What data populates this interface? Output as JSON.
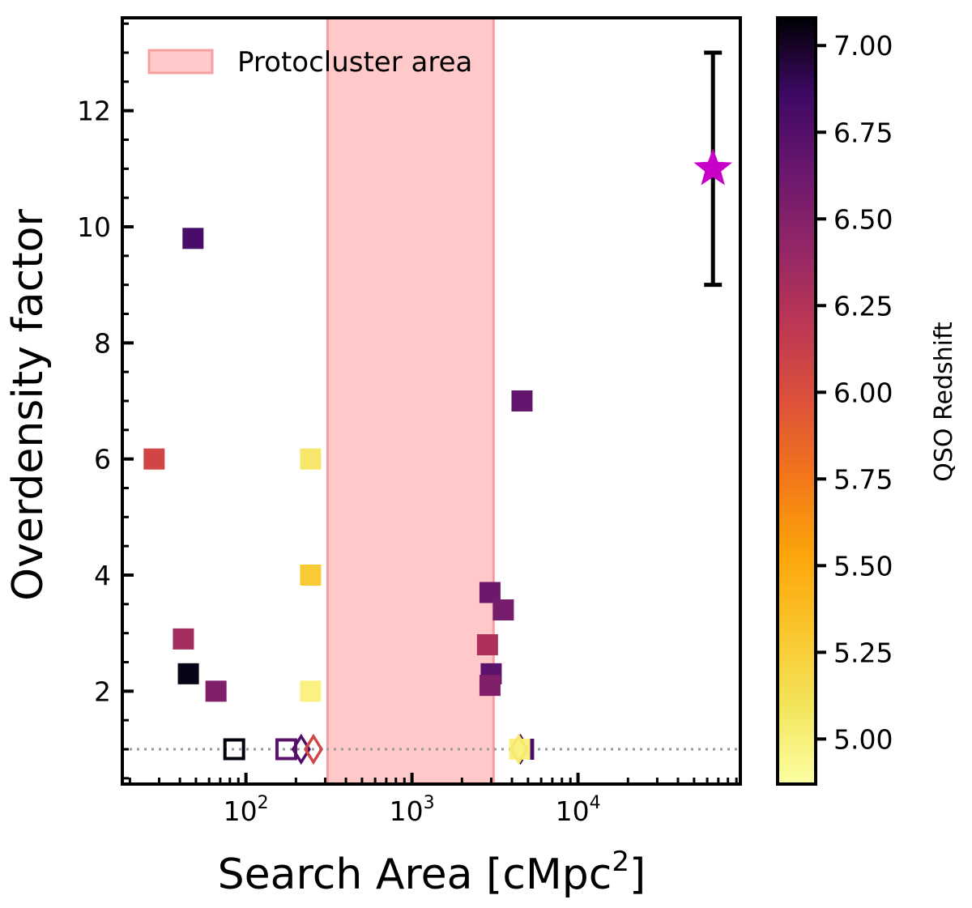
{
  "chart_data": {
    "type": "scatter",
    "xlabel": "Search Area [cMpc$^2$]",
    "xlabel_main": "Search Area [cMpc",
    "xlabel_sup": "2",
    "xlabel_close": "]",
    "ylabel": "Overdensity factor",
    "xscale": "log",
    "xlim": [
      18,
      95000
    ],
    "ylim": [
      0.4,
      13.6
    ],
    "x_ticks": [
      {
        "value": 100,
        "base": "10",
        "exp": "2"
      },
      {
        "value": 1000,
        "base": "10",
        "exp": "3"
      },
      {
        "value": 10000,
        "base": "10",
        "exp": "4"
      }
    ],
    "y_ticks": [
      2,
      4,
      6,
      8,
      10,
      12
    ],
    "y_tick_labels": [
      "2",
      "4",
      "6",
      "8",
      "10",
      "12"
    ],
    "reference_line": {
      "y": 1,
      "style": "dotted",
      "color": "#999999"
    },
    "shaded_region": {
      "label": "Protocluster area",
      "x_range": [
        310,
        3100
      ],
      "color": "#ffc9c9",
      "edge_color": "#f4a0a0"
    },
    "legend": {
      "position": "top-left",
      "entries": [
        {
          "label": "Protocluster area"
        }
      ]
    },
    "colorbar": {
      "label": "QSO Redshift",
      "colormap": "inferno",
      "range": [
        4.87,
        7.08
      ],
      "ticks": [
        5.0,
        5.25,
        5.5,
        5.75,
        6.0,
        6.25,
        6.5,
        6.75,
        7.0
      ],
      "tick_labels": [
        "5.00",
        "5.25",
        "5.50",
        "5.75",
        "6.00",
        "6.25",
        "6.50",
        "6.75",
        "7.00"
      ]
    },
    "points": [
      {
        "x": 48,
        "y": 9.8,
        "z": 6.6,
        "marker": "square",
        "filled": true
      },
      {
        "x": 28,
        "y": 6.0,
        "z": 5.85,
        "marker": "square",
        "filled": true
      },
      {
        "x": 42,
        "y": 2.9,
        "z": 6.1,
        "marker": "square",
        "filled": true
      },
      {
        "x": 45,
        "y": 2.3,
        "z": 7.0,
        "marker": "square",
        "filled": true
      },
      {
        "x": 66,
        "y": 2.0,
        "z": 6.3,
        "marker": "square",
        "filled": true
      },
      {
        "x": 245,
        "y": 6.0,
        "z": 5.0,
        "marker": "square",
        "filled": true
      },
      {
        "x": 245,
        "y": 4.0,
        "z": 5.15,
        "marker": "square",
        "filled": true
      },
      {
        "x": 245,
        "y": 2.0,
        "z": 4.95,
        "marker": "square",
        "filled": true
      },
      {
        "x": 4600,
        "y": 7.0,
        "z": 6.45,
        "marker": "square",
        "filled": true
      },
      {
        "x": 2950,
        "y": 3.7,
        "z": 6.4,
        "marker": "square",
        "filled": true
      },
      {
        "x": 3550,
        "y": 3.4,
        "z": 6.35,
        "marker": "square",
        "filled": true
      },
      {
        "x": 2850,
        "y": 2.8,
        "z": 6.05,
        "marker": "square",
        "filled": true
      },
      {
        "x": 3000,
        "y": 2.3,
        "z": 6.5,
        "marker": "square",
        "filled": true
      },
      {
        "x": 2950,
        "y": 2.1,
        "z": 6.3,
        "marker": "square",
        "filled": true
      },
      {
        "x": 85,
        "y": 1.0,
        "z": 7.05,
        "marker": "square",
        "filled": false
      },
      {
        "x": 175,
        "y": 1.0,
        "z": 6.5,
        "marker": "square",
        "filled": false
      },
      {
        "x": 215,
        "y": 1.0,
        "z": 6.55,
        "marker": "diamond",
        "filled": false
      },
      {
        "x": 255,
        "y": 1.0,
        "z": 5.85,
        "marker": "diamond",
        "filled": false
      },
      {
        "x": 4700,
        "y": 1.0,
        "z": 6.6,
        "marker": "square",
        "filled": true
      },
      {
        "x": 4500,
        "y": 1.0,
        "z": 6.7,
        "marker": "diamond",
        "filled": false
      },
      {
        "x": 4450,
        "y": 1.0,
        "z": 4.95,
        "marker": "square",
        "filled": true
      },
      {
        "x": 4400,
        "y": 1.0,
        "z": 5.0,
        "marker": "diamond",
        "filled": false
      }
    ],
    "highlight": {
      "x": 65000,
      "y": 11.0,
      "yerr_low": 9.0,
      "yerr_high": 13.0,
      "marker": "star",
      "color": "#c800c8"
    }
  }
}
